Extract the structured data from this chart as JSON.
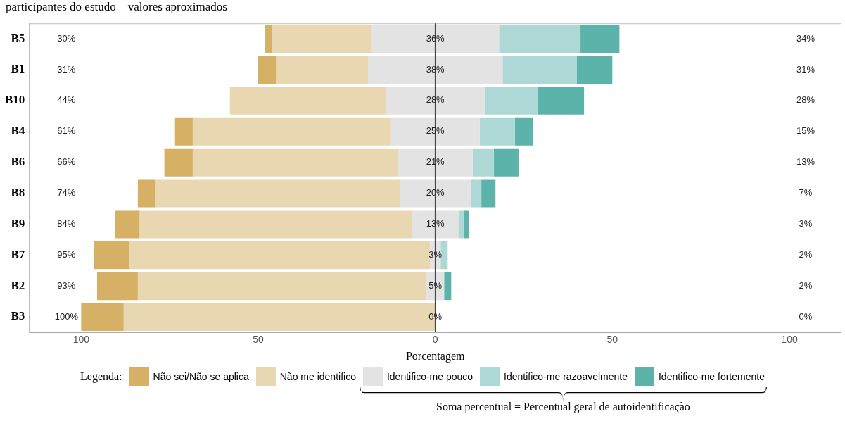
{
  "chart_data": {
    "type": "bar",
    "orientation": "horizontal",
    "title": "participantes do estudo – valores aproximados",
    "xlabel": "Porcentagem",
    "legend_title": "Legenda:",
    "legend": "bottom",
    "grid": false,
    "categories": [
      "B5",
      "B1",
      "B10",
      "B4",
      "B6",
      "B8",
      "B9",
      "B7",
      "B2",
      "B3"
    ],
    "xlim": [
      -114.5,
      114.5
    ],
    "xticks": [
      {
        "value": -100,
        "label": "100"
      },
      {
        "value": -50,
        "label": "50"
      },
      0,
      50,
      100
    ],
    "series": [
      {
        "name": "Não sei/Não se aplica",
        "color": "#d6b064",
        "base": [
          -48,
          -50,
          null,
          -73.5,
          -76.5,
          -84,
          -90.5,
          -96.5,
          -95.5,
          -100
        ],
        "values": [
          2,
          5,
          0,
          5,
          8,
          5,
          7,
          10,
          11.5,
          12
        ]
      },
      {
        "name": "Não me identifico",
        "color": "#e8d7b0",
        "base": [
          -46,
          -45,
          -58,
          -68.5,
          -68.5,
          -79,
          -83.5,
          -86.5,
          -84,
          -88
        ],
        "values": [
          28,
          26,
          44,
          56,
          58,
          69,
          77,
          85,
          81.5,
          88
        ]
      },
      {
        "name": "Identifico-me pouco",
        "color": "#e3e3e3",
        "base": [
          -18,
          -19,
          -14,
          -12.5,
          -10.5,
          -10,
          -6.5,
          -1.5,
          -2.5,
          null
        ],
        "values": [
          36,
          38,
          28,
          25,
          21,
          20,
          13,
          3,
          5,
          0
        ],
        "value_labels": [
          "36%",
          "38%",
          "28%",
          "25%",
          "21%",
          "20%",
          "13%",
          "3%",
          "5%",
          "0%"
        ]
      },
      {
        "name": "Identifico-me razoavelmente",
        "color": "#aed8d5",
        "base": [
          18,
          19,
          14,
          12.5,
          10.5,
          10,
          6.5,
          1.5,
          null,
          null
        ],
        "values": [
          23,
          21,
          15,
          10,
          6,
          3,
          1.5,
          2,
          0,
          0
        ]
      },
      {
        "name": "Identifico-me fortemente",
        "color": "#5bb3aa",
        "base": [
          41,
          40,
          29,
          22.5,
          16.5,
          13,
          8,
          null,
          2.5,
          null
        ],
        "values": [
          11,
          10,
          13,
          5,
          7,
          4,
          1.5,
          0,
          2,
          0
        ]
      }
    ],
    "ref_lines": [
      {
        "axis": "x",
        "value": 0,
        "color": "#444444"
      }
    ],
    "annotations": [
      "30%",
      "31%",
      "44%",
      "61%",
      "66%",
      "74%",
      "84%",
      "95%",
      "93%",
      "100%",
      "34%",
      "31%",
      "28%",
      "15%",
      "13%",
      "7%",
      "3%",
      "2%",
      "2%",
      "0%",
      "Soma percentual = Percentual geral de autoidentificação"
    ]
  }
}
